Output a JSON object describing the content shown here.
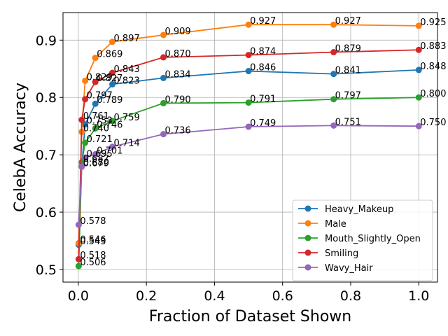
{
  "chart_data": {
    "type": "line",
    "xlabel": "Fraction of Dataset Shown",
    "ylabel": "CelebA Accuracy",
    "xlim": [
      -0.045,
      1.055
    ],
    "ylim": [
      0.478,
      0.948
    ],
    "xticks": [
      0.0,
      0.2,
      0.4,
      0.6,
      0.8,
      1.0
    ],
    "xtick_labels": [
      "0.0",
      "0.2",
      "0.4",
      "0.6",
      "0.8",
      "1.0"
    ],
    "yticks": [
      0.5,
      0.6,
      0.7,
      0.8,
      0.9
    ],
    "ytick_labels": [
      "0.5",
      "0.6",
      "0.7",
      "0.8",
      "0.9"
    ],
    "grid": true,
    "legend_position": "bottom-right",
    "x": [
      0.001,
      0.01,
      0.02,
      0.05,
      0.1,
      0.25,
      0.5,
      0.75,
      1.0
    ],
    "series": [
      {
        "name": "Heavy_Makeup",
        "color": "#1f77b4",
        "values": [
          0.543,
          0.68,
          0.753,
          0.789,
          0.823,
          0.834,
          0.846,
          0.841,
          0.848
        ],
        "labels": [
          "0.543",
          "0.680",
          "0.753",
          "0.789",
          "0.823",
          "0.834",
          "0.846",
          "0.841",
          "0.848"
        ]
      },
      {
        "name": "Male",
        "color": "#ff7f0e",
        "values": [
          0.546,
          0.74,
          0.829,
          0.869,
          0.897,
          0.909,
          0.927,
          0.927,
          0.925
        ],
        "labels": [
          "0.546",
          "0.740",
          "0.829",
          "0.869",
          "0.897",
          "0.909",
          "0.927",
          "0.927",
          "0.925"
        ]
      },
      {
        "name": "Mouth_Slightly_Open",
        "color": "#2ca02c",
        "values": [
          0.506,
          0.687,
          0.721,
          0.746,
          0.759,
          0.79,
          0.791,
          0.797,
          0.8
        ],
        "labels": [
          "0.506",
          "0.687",
          "0.721",
          "0.746",
          "0.759",
          "0.790",
          "0.791",
          "0.797",
          "0.800"
        ]
      },
      {
        "name": "Smiling",
        "color": "#d62728",
        "values": [
          0.518,
          0.761,
          0.797,
          0.827,
          0.843,
          0.87,
          0.874,
          0.879,
          0.883
        ],
        "labels": [
          "0.518",
          "0.761",
          "0.797",
          "0.827",
          "0.843",
          "0.870",
          "0.874",
          "0.879",
          "0.883"
        ]
      },
      {
        "name": "Wavy_Hair",
        "color": "#9467bd",
        "values": [
          0.578,
          0.679,
          0.695,
          0.701,
          0.714,
          0.736,
          0.749,
          0.751,
          0.75
        ],
        "labels": [
          "0.578",
          "0.679",
          "0.695",
          "0.701",
          "0.714",
          "0.736",
          "0.749",
          "0.751",
          "0.750"
        ]
      }
    ]
  }
}
